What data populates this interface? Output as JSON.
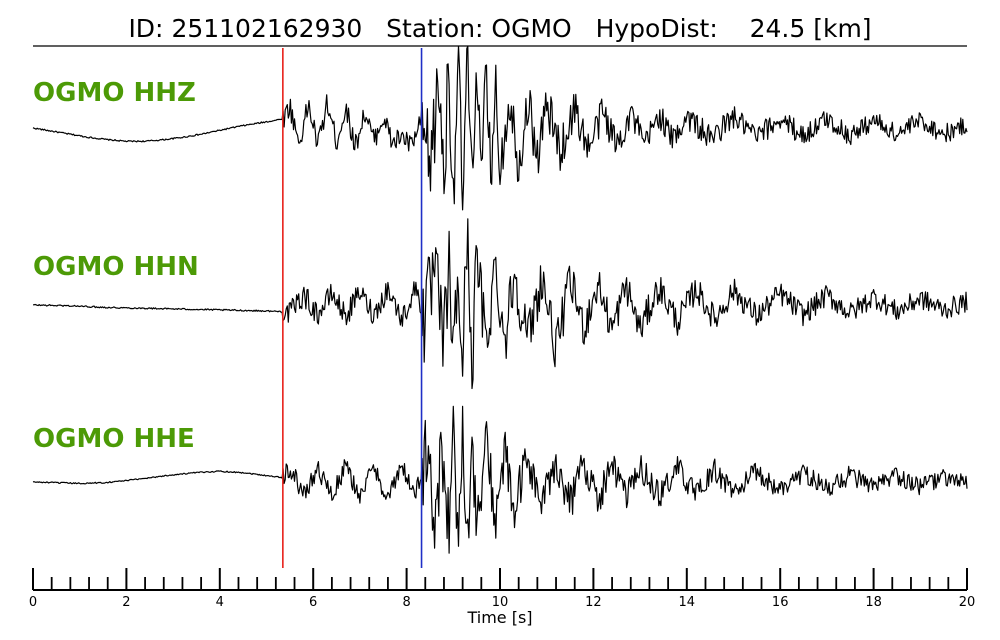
{
  "header": {
    "id_label": "ID:",
    "id_value": "251102162930",
    "station_label": "Station:",
    "station_value": "OGMO",
    "hypodist_label": "HypoDist:",
    "hypodist_value": "24.5",
    "hypodist_unit": "[km]"
  },
  "colors": {
    "label": "#4c9a06",
    "p_pick": "#e8211b",
    "s_pick": "#1f2fc7",
    "trace": "#000000"
  },
  "chart_data": {
    "type": "line",
    "title": "ID: 251102162930   Station: OGMO   HypoDist:    24.5 [km]",
    "xlabel": "Time [s]",
    "ylabel": "",
    "xlim": [
      0,
      20
    ],
    "x_major_ticks": [
      0,
      2,
      4,
      6,
      8,
      10,
      12,
      14,
      16,
      18,
      20
    ],
    "x_tick_labels": [
      "0",
      "2",
      "4",
      "6",
      "8",
      "10",
      "12",
      "14",
      "16",
      "18",
      "20"
    ],
    "x_minor_step": 0.4,
    "grid": false,
    "picks": [
      {
        "phase": "P",
        "time": 5.35,
        "color": "#e8211b"
      },
      {
        "phase": "S",
        "time": 8.32,
        "color": "#1f2fc7"
      }
    ],
    "series": [
      {
        "name": "OGMO HHZ",
        "channel": "HHZ",
        "x": [
          0,
          0.4,
          0.8,
          1.2,
          1.6,
          2.0,
          2.4,
          2.8,
          3.2,
          3.6,
          4.0,
          4.4,
          4.8,
          5.2,
          5.35,
          5.5,
          5.7,
          5.9,
          6.1,
          6.3,
          6.5,
          6.7,
          6.9,
          7.1,
          7.3,
          7.5,
          7.7,
          7.9,
          8.1,
          8.3,
          8.5,
          8.7,
          8.8,
          8.9,
          9.0,
          9.1,
          9.2,
          9.3,
          9.4,
          9.5,
          9.6,
          9.7,
          9.8,
          9.9,
          10.0,
          10.2,
          10.4,
          10.6,
          10.8,
          11.0,
          11.3,
          11.6,
          11.9,
          12.2,
          12.5,
          12.8,
          13.1,
          13.4,
          13.7,
          14.0,
          14.5,
          15.0,
          15.5,
          16.0,
          16.5,
          17.0,
          17.5,
          18.0,
          18.5,
          19.0,
          19.5,
          20.0
        ],
        "values": [
          0.0,
          -0.04,
          -0.08,
          -0.12,
          -0.15,
          -0.17,
          -0.17,
          -0.15,
          -0.12,
          -0.08,
          -0.03,
          0.02,
          0.06,
          0.1,
          0.12,
          0.28,
          -0.2,
          0.3,
          -0.22,
          0.32,
          -0.18,
          0.26,
          -0.24,
          0.2,
          -0.16,
          0.14,
          -0.2,
          -0.1,
          -0.24,
          0.06,
          -0.5,
          0.6,
          -0.7,
          0.85,
          -0.9,
          1.0,
          -1.0,
          0.95,
          -0.8,
          1.0,
          -0.75,
          0.7,
          -0.6,
          0.55,
          -0.5,
          0.42,
          -0.45,
          0.36,
          -0.38,
          0.3,
          -0.3,
          0.26,
          -0.28,
          0.22,
          -0.22,
          0.2,
          -0.24,
          0.18,
          -0.16,
          0.16,
          -0.14,
          0.14,
          -0.12,
          0.12,
          -0.1,
          0.12,
          -0.1,
          0.1,
          -0.08,
          0.1,
          -0.08,
          0.04
        ]
      },
      {
        "name": "OGMO HHN",
        "channel": "HHN",
        "x": [
          0,
          0.8,
          1.6,
          2.4,
          3.2,
          4.0,
          4.8,
          5.35,
          5.5,
          5.8,
          6.1,
          6.4,
          6.7,
          7.0,
          7.3,
          7.6,
          7.9,
          8.2,
          8.4,
          8.6,
          8.8,
          8.9,
          9.0,
          9.1,
          9.2,
          9.3,
          9.4,
          9.5,
          9.7,
          9.9,
          10.1,
          10.3,
          10.6,
          10.9,
          11.2,
          11.5,
          11.8,
          12.1,
          12.4,
          12.7,
          13.0,
          13.4,
          13.8,
          14.2,
          14.6,
          15.0,
          15.5,
          16.0,
          16.5,
          17.0,
          17.5,
          18.0,
          18.5,
          19.0,
          19.5,
          20.0
        ],
        "values": [
          0.0,
          -0.01,
          -0.03,
          -0.04,
          -0.05,
          -0.06,
          -0.07,
          -0.08,
          -0.1,
          0.12,
          -0.12,
          0.14,
          -0.14,
          0.16,
          -0.12,
          0.2,
          -0.18,
          0.22,
          -0.2,
          0.4,
          -0.5,
          0.55,
          -0.6,
          0.3,
          -0.7,
          1.0,
          -0.8,
          0.6,
          -0.5,
          0.5,
          -0.45,
          0.4,
          -0.42,
          0.35,
          -0.55,
          0.3,
          -0.28,
          0.26,
          -0.3,
          0.24,
          -0.3,
          0.22,
          -0.2,
          0.2,
          -0.18,
          0.18,
          -0.14,
          0.14,
          -0.12,
          0.12,
          -0.1,
          0.1,
          -0.08,
          0.08,
          -0.06,
          0.04
        ]
      },
      {
        "name": "OGMO HHE",
        "channel": "HHE",
        "x": [
          0,
          0.5,
          1.0,
          1.5,
          2.0,
          2.5,
          3.0,
          3.5,
          4.0,
          4.5,
          5.0,
          5.35,
          5.5,
          5.8,
          6.1,
          6.4,
          6.7,
          7.0,
          7.3,
          7.6,
          7.9,
          8.2,
          8.4,
          8.6,
          8.8,
          8.9,
          9.0,
          9.1,
          9.2,
          9.3,
          9.4,
          9.5,
          9.7,
          9.9,
          10.1,
          10.3,
          10.6,
          10.9,
          11.2,
          11.5,
          11.8,
          12.1,
          12.4,
          12.7,
          13.0,
          13.4,
          13.8,
          14.2,
          14.6,
          15.0,
          15.5,
          16.0,
          16.5,
          17.0,
          17.5,
          18.0,
          18.5,
          19.0,
          19.5,
          20.0
        ],
        "values": [
          0.0,
          -0.01,
          -0.02,
          -0.01,
          0.02,
          0.06,
          0.1,
          0.13,
          0.15,
          0.13,
          0.09,
          0.06,
          0.2,
          -0.18,
          0.2,
          -0.2,
          0.22,
          -0.2,
          0.2,
          -0.22,
          0.2,
          -0.18,
          0.35,
          -0.4,
          0.5,
          -0.7,
          0.6,
          -0.85,
          0.9,
          -1.0,
          0.6,
          -0.7,
          0.55,
          -0.5,
          0.4,
          -0.42,
          0.35,
          -0.35,
          0.3,
          -0.3,
          0.28,
          -0.26,
          0.26,
          -0.24,
          0.22,
          -0.2,
          0.2,
          -0.18,
          0.16,
          -0.14,
          0.14,
          -0.12,
          0.14,
          -0.1,
          0.1,
          -0.08,
          0.08,
          -0.06,
          0.06,
          -0.02
        ]
      }
    ]
  }
}
